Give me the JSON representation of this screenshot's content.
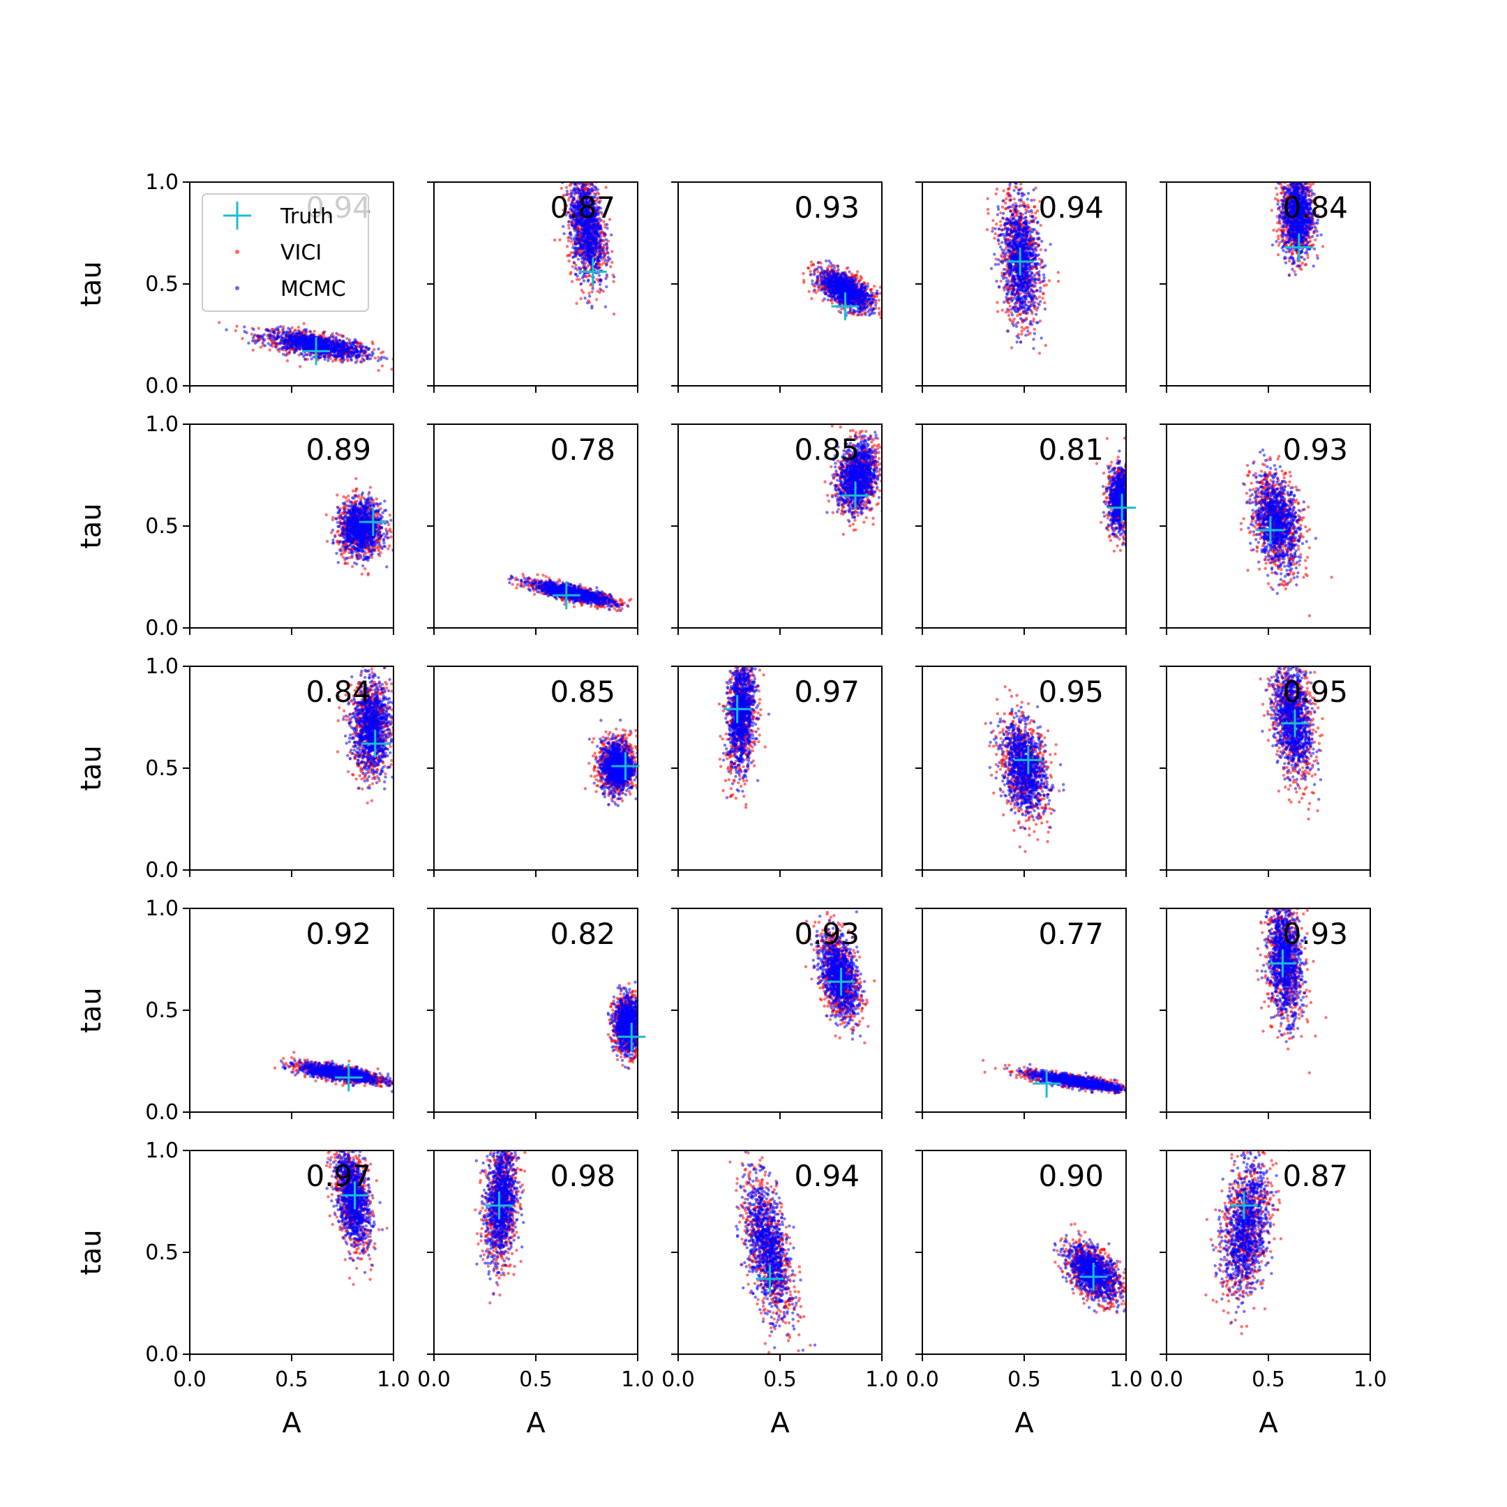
{
  "chart_data": {
    "type": "scatter",
    "layout": {
      "rows": 5,
      "cols": 5
    },
    "xlabel": "A",
    "ylabel": "tau",
    "xlim": [
      0,
      1
    ],
    "ylim": [
      0,
      1
    ],
    "xticks": [
      "0.0",
      "0.5",
      "1.0"
    ],
    "yticks": [
      "0.0",
      "0.5",
      "1.0"
    ],
    "grid": false,
    "legend": {
      "placement": "upper-left of first panel",
      "entries": [
        {
          "label": "Truth",
          "marker": "plus",
          "color": "#17becf"
        },
        {
          "label": "VICI",
          "marker": "dot",
          "color": "#ff0000"
        },
        {
          "label": "MCMC",
          "marker": "dot",
          "color": "#0000ff"
        }
      ]
    },
    "colors": {
      "truth": "#17becf",
      "vici": "#ff0000",
      "mcmc": "#0000ff"
    },
    "panels": [
      {
        "overlap": "0.94",
        "truth": [
          0.62,
          0.17
        ],
        "cloud": {
          "cx": 0.62,
          "cy": 0.2,
          "sx": 0.13,
          "sy": 0.035,
          "rho": -0.6
        }
      },
      {
        "overlap": "0.87",
        "truth": [
          0.78,
          0.56
        ],
        "cloud": {
          "cx": 0.75,
          "cy": 0.78,
          "sx": 0.045,
          "sy": 0.14,
          "rho": -0.3
        }
      },
      {
        "overlap": "0.93",
        "truth": [
          0.82,
          0.39
        ],
        "cloud": {
          "cx": 0.82,
          "cy": 0.47,
          "sx": 0.07,
          "sy": 0.05,
          "rho": -0.6
        }
      },
      {
        "overlap": "0.94",
        "truth": [
          0.48,
          0.61
        ],
        "cloud": {
          "cx": 0.48,
          "cy": 0.62,
          "sx": 0.05,
          "sy": 0.16,
          "rho": -0.2
        }
      },
      {
        "overlap": "0.84",
        "truth": [
          0.65,
          0.68
        ],
        "cloud": {
          "cx": 0.64,
          "cy": 0.84,
          "sx": 0.04,
          "sy": 0.11,
          "rho": 0.0
        }
      },
      {
        "overlap": "0.89",
        "truth": [
          0.9,
          0.52
        ],
        "cloud": {
          "cx": 0.84,
          "cy": 0.49,
          "sx": 0.055,
          "sy": 0.07,
          "rho": 0.0
        }
      },
      {
        "overlap": "0.78",
        "truth": [
          0.65,
          0.16
        ],
        "cloud": {
          "cx": 0.68,
          "cy": 0.17,
          "sx": 0.11,
          "sy": 0.03,
          "rho": -0.8
        }
      },
      {
        "overlap": "0.85",
        "truth": [
          0.87,
          0.65
        ],
        "cloud": {
          "cx": 0.88,
          "cy": 0.74,
          "sx": 0.05,
          "sy": 0.09,
          "rho": 0.2
        }
      },
      {
        "overlap": "0.81",
        "truth": [
          0.98,
          0.59
        ],
        "cloud": {
          "cx": 0.98,
          "cy": 0.63,
          "sx": 0.035,
          "sy": 0.08,
          "rho": 0.0
        }
      },
      {
        "overlap": "0.93",
        "truth": [
          0.51,
          0.48
        ],
        "cloud": {
          "cx": 0.54,
          "cy": 0.52,
          "sx": 0.06,
          "sy": 0.12,
          "rho": -0.3
        }
      },
      {
        "overlap": "0.84",
        "truth": [
          0.91,
          0.62
        ],
        "cloud": {
          "cx": 0.89,
          "cy": 0.7,
          "sx": 0.05,
          "sy": 0.12,
          "rho": 0.0
        }
      },
      {
        "overlap": "0.85",
        "truth": [
          0.94,
          0.51
        ],
        "cloud": {
          "cx": 0.9,
          "cy": 0.51,
          "sx": 0.045,
          "sy": 0.07,
          "rho": 0.0
        }
      },
      {
        "overlap": "0.97",
        "truth": [
          0.29,
          0.79
        ],
        "cloud": {
          "cx": 0.31,
          "cy": 0.77,
          "sx": 0.035,
          "sy": 0.15,
          "rho": 0.2
        }
      },
      {
        "overlap": "0.95",
        "truth": [
          0.52,
          0.54
        ],
        "cloud": {
          "cx": 0.5,
          "cy": 0.5,
          "sx": 0.06,
          "sy": 0.12,
          "rho": -0.3
        }
      },
      {
        "overlap": "0.95",
        "truth": [
          0.63,
          0.72
        ],
        "cloud": {
          "cx": 0.62,
          "cy": 0.74,
          "sx": 0.05,
          "sy": 0.15,
          "rho": -0.3
        }
      },
      {
        "overlap": "0.92",
        "truth": [
          0.78,
          0.17
        ],
        "cloud": {
          "cx": 0.74,
          "cy": 0.19,
          "sx": 0.11,
          "sy": 0.025,
          "rho": -0.7
        }
      },
      {
        "overlap": "0.82",
        "truth": [
          0.97,
          0.37
        ],
        "cloud": {
          "cx": 0.95,
          "cy": 0.43,
          "sx": 0.035,
          "sy": 0.07,
          "rho": 0.0
        }
      },
      {
        "overlap": "0.93",
        "truth": [
          0.8,
          0.64
        ],
        "cloud": {
          "cx": 0.79,
          "cy": 0.67,
          "sx": 0.05,
          "sy": 0.11,
          "rho": -0.4
        }
      },
      {
        "overlap": "0.77",
        "truth": [
          0.61,
          0.14
        ],
        "cloud": {
          "cx": 0.76,
          "cy": 0.15,
          "sx": 0.13,
          "sy": 0.025,
          "rho": -0.8
        }
      },
      {
        "overlap": "0.93",
        "truth": [
          0.57,
          0.73
        ],
        "cloud": {
          "cx": 0.58,
          "cy": 0.74,
          "sx": 0.045,
          "sy": 0.15,
          "rho": -0.2
        }
      },
      {
        "overlap": "0.97",
        "truth": [
          0.81,
          0.78
        ],
        "cloud": {
          "cx": 0.8,
          "cy": 0.77,
          "sx": 0.045,
          "sy": 0.13,
          "rho": -0.4
        }
      },
      {
        "overlap": "0.98",
        "truth": [
          0.32,
          0.73
        ],
        "cloud": {
          "cx": 0.33,
          "cy": 0.75,
          "sx": 0.04,
          "sy": 0.16,
          "rho": 0.2
        }
      },
      {
        "overlap": "0.94",
        "truth": [
          0.45,
          0.37
        ],
        "cloud": {
          "cx": 0.44,
          "cy": 0.52,
          "sx": 0.06,
          "sy": 0.18,
          "rho": -0.5
        }
      },
      {
        "overlap": "0.90",
        "truth": [
          0.84,
          0.38
        ],
        "cloud": {
          "cx": 0.84,
          "cy": 0.4,
          "sx": 0.07,
          "sy": 0.07,
          "rho": -0.5
        }
      },
      {
        "overlap": "0.87",
        "truth": [
          0.38,
          0.73
        ],
        "cloud": {
          "cx": 0.39,
          "cy": 0.62,
          "sx": 0.06,
          "sy": 0.17,
          "rho": 0.3
        }
      }
    ]
  }
}
